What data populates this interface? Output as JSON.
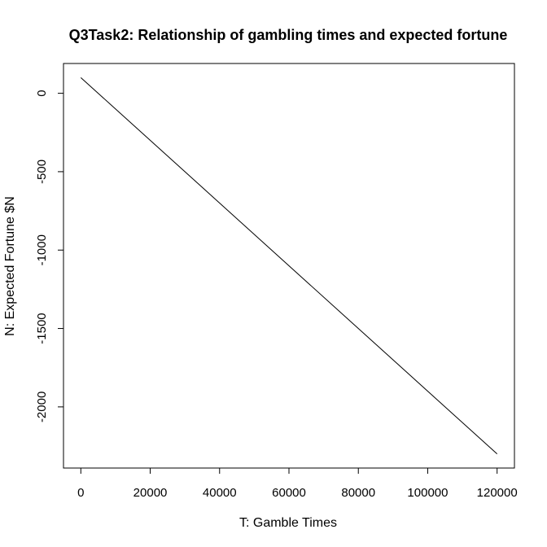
{
  "chart_data": {
    "type": "line",
    "title": "Q3Task2: Relationship of gambling times and expected fortune",
    "xlabel": "T: Gamble Times",
    "ylabel": "N: Expected Fortune $N",
    "xlim": [
      -5000,
      125000
    ],
    "ylim": [
      -2390,
      190
    ],
    "x_ticks": [
      0,
      20000,
      40000,
      60000,
      80000,
      100000,
      120000
    ],
    "y_ticks": [
      0,
      -500,
      -1000,
      -1500,
      -2000
    ],
    "x_tick_labels": [
      "0",
      "20000",
      "40000",
      "60000",
      "80000",
      "100000",
      "120000"
    ],
    "y_tick_labels": [
      "0",
      "-500",
      "-1000",
      "-1500",
      "-2000"
    ],
    "grid": false,
    "legend": "none",
    "series": [
      {
        "x": [
          0,
          120000
        ],
        "y": [
          100,
          -2300
        ],
        "color": "#000000"
      }
    ]
  }
}
